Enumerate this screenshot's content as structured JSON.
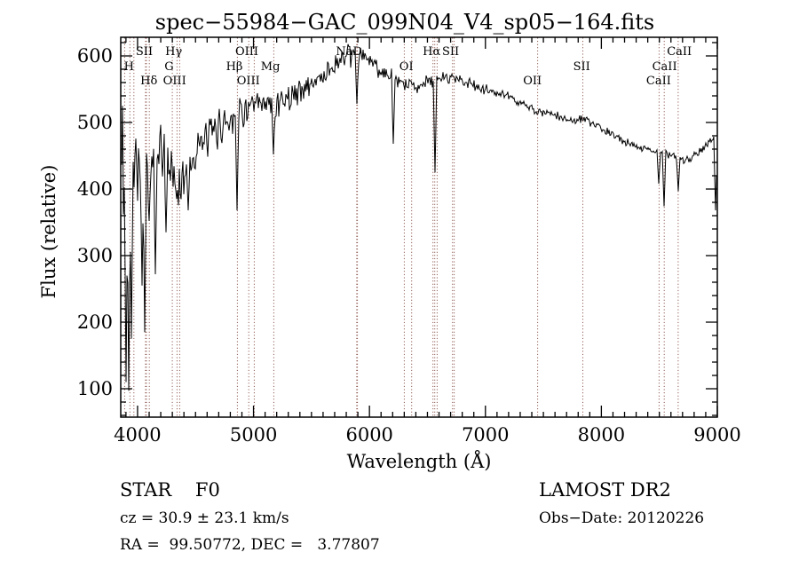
{
  "title": "spec−55984−GAC_099N04_V4_sp05−164.fits",
  "axes": {
    "xlabel": "Wavelength (Å)",
    "ylabel": "Flux (relative)"
  },
  "annotations": {
    "class_line": "STAR    F0",
    "cz_line": "cz = 30.9 ± 23.1 km/s",
    "radec_line": "RA =  99.50772, DEC =   3.77807",
    "survey": "LAMOST DR2",
    "obsdate": "Obs−Date: 20120226"
  },
  "colors": {
    "background": "#ffffff",
    "spectrum": "#000000",
    "frame": "#000000",
    "marker_line": "#7d4037"
  },
  "chart_data": {
    "type": "line",
    "title": "spec−55984−GAC_099N04_V4_sp05−164.fits",
    "xlabel": "Wavelength (Å)",
    "ylabel": "Flux (relative)",
    "xlim": [
      3855,
      9000
    ],
    "ylim": [
      57,
      628
    ],
    "x_major_ticks": [
      4000,
      5000,
      6000,
      7000,
      8000,
      9000
    ],
    "x_minor_step": 100,
    "y_major_ticks": [
      100,
      200,
      300,
      400,
      500,
      600
    ],
    "y_minor_step": 20,
    "grid": false,
    "legend": "none",
    "series_name": "flux",
    "noise_seed": 42,
    "envelope_points": [
      [
        3855,
        430
      ],
      [
        3880,
        420
      ],
      [
        3900,
        430
      ],
      [
        3925,
        420
      ],
      [
        3950,
        440
      ],
      [
        3980,
        450
      ],
      [
        4010,
        450
      ],
      [
        4040,
        442
      ],
      [
        4075,
        430
      ],
      [
        4110,
        433
      ],
      [
        4150,
        445
      ],
      [
        4190,
        452
      ],
      [
        4230,
        448
      ],
      [
        4270,
        440
      ],
      [
        4310,
        425
      ],
      [
        4345,
        410
      ],
      [
        4385,
        414
      ],
      [
        4420,
        432
      ],
      [
        4480,
        452
      ],
      [
        4545,
        465
      ],
      [
        4610,
        477
      ],
      [
        4690,
        490
      ],
      [
        4765,
        502
      ],
      [
        4840,
        512
      ],
      [
        4920,
        518
      ],
      [
        4995,
        522
      ],
      [
        5070,
        524
      ],
      [
        5150,
        526
      ],
      [
        5225,
        532
      ],
      [
        5300,
        538
      ],
      [
        5380,
        545
      ],
      [
        5455,
        553
      ],
      [
        5530,
        562
      ],
      [
        5610,
        572
      ],
      [
        5685,
        583
      ],
      [
        5760,
        594
      ],
      [
        5835,
        598
      ],
      [
        5900,
        602
      ],
      [
        5960,
        597
      ],
      [
        6020,
        590
      ],
      [
        6090,
        580
      ],
      [
        6160,
        570
      ],
      [
        6235,
        562
      ],
      [
        6310,
        556
      ],
      [
        6390,
        556
      ],
      [
        6465,
        559
      ],
      [
        6540,
        563
      ],
      [
        6620,
        566
      ],
      [
        6695,
        569
      ],
      [
        6770,
        566
      ],
      [
        6850,
        559
      ],
      [
        6925,
        553
      ],
      [
        7000,
        549
      ],
      [
        7080,
        545
      ],
      [
        7155,
        541
      ],
      [
        7230,
        537
      ],
      [
        7330,
        527
      ],
      [
        7410,
        519
      ],
      [
        7500,
        514
      ],
      [
        7600,
        511
      ],
      [
        7700,
        504
      ],
      [
        7790,
        503
      ],
      [
        7845,
        507
      ],
      [
        7930,
        496
      ],
      [
        8020,
        489
      ],
      [
        8110,
        480
      ],
      [
        8210,
        471
      ],
      [
        8310,
        464
      ],
      [
        8400,
        460
      ],
      [
        8480,
        457
      ],
      [
        8540,
        453
      ],
      [
        8600,
        450
      ],
      [
        8650,
        449
      ],
      [
        8710,
        442
      ],
      [
        8770,
        448
      ],
      [
        8830,
        456
      ],
      [
        8890,
        463
      ],
      [
        8940,
        472
      ],
      [
        8975,
        477
      ],
      [
        9000,
        468
      ]
    ],
    "noise_sigma": [
      [
        3855,
        140
      ],
      [
        3900,
        150
      ],
      [
        3930,
        120
      ],
      [
        3960,
        80
      ],
      [
        4000,
        55
      ],
      [
        4050,
        48
      ],
      [
        4120,
        42
      ],
      [
        4200,
        38
      ],
      [
        4300,
        36
      ],
      [
        4450,
        30
      ],
      [
        4600,
        27
      ],
      [
        4800,
        23
      ],
      [
        5000,
        21
      ],
      [
        5200,
        19
      ],
      [
        5400,
        18
      ],
      [
        5600,
        17
      ],
      [
        5800,
        16
      ],
      [
        6000,
        14
      ],
      [
        6200,
        12
      ],
      [
        6400,
        11
      ],
      [
        6600,
        9
      ],
      [
        6800,
        8
      ],
      [
        7000,
        7
      ],
      [
        7300,
        6
      ],
      [
        7600,
        5.5
      ],
      [
        8000,
        5
      ],
      [
        8400,
        5
      ],
      [
        8700,
        5.5
      ],
      [
        9000,
        6
      ]
    ],
    "absorption_features": [
      {
        "wavelength": 3900,
        "flux": 110
      },
      {
        "wavelength": 3921,
        "flux": 97
      },
      {
        "wavelength": 3945,
        "flux": 175
      },
      {
        "wavelength": 4040,
        "flux": 255
      },
      {
        "wavelength": 4063,
        "flux": 185
      },
      {
        "wavelength": 4102,
        "flux": 352
      },
      {
        "wavelength": 4155,
        "flux": 272
      },
      {
        "wavelength": 4245,
        "flux": 335
      },
      {
        "wavelength": 4340,
        "flux": 385
      },
      {
        "wavelength": 4435,
        "flux": 368
      },
      {
        "wavelength": 4861,
        "flux": 368
      },
      {
        "wavelength": 5175,
        "flux": 452
      },
      {
        "wavelength": 5893,
        "flux": 528
      },
      {
        "wavelength": 6207,
        "flux": 468
      },
      {
        "wavelength": 6563,
        "flux": 425
      },
      {
        "wavelength": 8498,
        "flux": 408
      },
      {
        "wavelength": 8542,
        "flux": 374
      },
      {
        "wavelength": 8662,
        "flux": 397
      },
      {
        "wavelength": 8988,
        "flux": 368
      }
    ],
    "line_markers": [
      {
        "label": "H",
        "row": 2,
        "label_at": 3926,
        "lines": [
          3889,
          3933.7,
          3968.5
        ]
      },
      {
        "label": "SII",
        "row": 1,
        "label_at": 4058,
        "lines": [
          4068.6,
          4076.4
        ]
      },
      {
        "label": "Hδ",
        "row": 3,
        "label_at": 4098,
        "lines": [
          4101.7
        ]
      },
      {
        "label": "G",
        "row": 2,
        "label_at": 4272,
        "lines": [
          4300
        ]
      },
      {
        "label": "Hγ",
        "row": 1,
        "label_at": 4312,
        "lines": [
          4340.5
        ]
      },
      {
        "label": "OIII",
        "row": 3,
        "label_at": 4320,
        "lines": [
          4363.2
        ]
      },
      {
        "label": "Hβ",
        "row": 2,
        "label_at": 4835,
        "lines": [
          4861.3
        ]
      },
      {
        "label": "OIII",
        "row": 1,
        "label_at": 4942,
        "lines": [
          4959
        ]
      },
      {
        "label": "OIII",
        "row": 3,
        "label_at": 4956,
        "lines": [
          5006.8
        ]
      },
      {
        "label": "Mg",
        "row": 2,
        "label_at": 5146,
        "lines": [
          5175.3
        ]
      },
      {
        "label": "NaD",
        "row": 1,
        "label_at": 5824,
        "lines": [
          5890,
          5896
        ]
      },
      {
        "label": "OI",
        "row": 2,
        "label_at": 6318,
        "lines": [
          6300.2,
          6363.8
        ]
      },
      {
        "label": "Hα",
        "row": 1,
        "label_at": 6536,
        "lines": [
          6548,
          6562.8,
          6583.4
        ]
      },
      {
        "label": "SII",
        "row": 1,
        "label_at": 6700,
        "lines": [
          6716.4,
          6730.8
        ]
      },
      {
        "label": "OII",
        "row": 3,
        "label_at": 7405,
        "lines": [
          7450
        ]
      },
      {
        "label": "SII",
        "row": 2,
        "label_at": 7830,
        "lines": [
          7840
        ]
      },
      {
        "label": "CaII",
        "row": 3,
        "label_at": 8494,
        "lines": [
          8498
        ]
      },
      {
        "label": "CaII",
        "row": 2,
        "label_at": 8545,
        "lines": [
          8542.1
        ]
      },
      {
        "label": "CaII",
        "row": 1,
        "label_at": 8672,
        "lines": [
          8662.1
        ]
      }
    ]
  }
}
